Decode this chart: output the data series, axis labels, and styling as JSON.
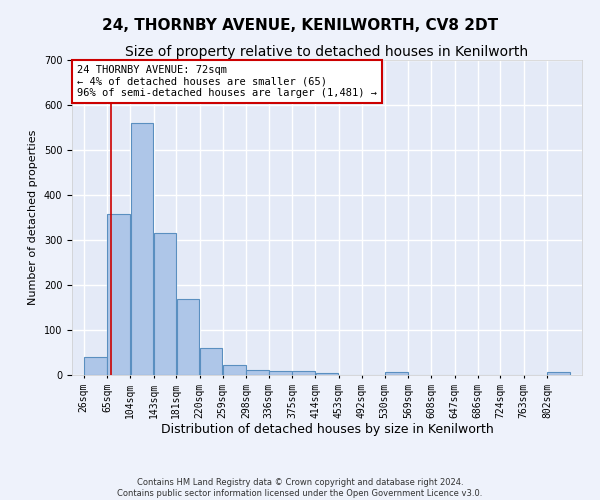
{
  "title": "24, THORNBY AVENUE, KENILWORTH, CV8 2DT",
  "subtitle": "Size of property relative to detached houses in Kenilworth",
  "xlabel": "Distribution of detached houses by size in Kenilworth",
  "ylabel": "Number of detached properties",
  "footer_line1": "Contains HM Land Registry data © Crown copyright and database right 2024.",
  "footer_line2": "Contains public sector information licensed under the Open Government Licence v3.0.",
  "bin_labels": [
    "26sqm",
    "65sqm",
    "104sqm",
    "143sqm",
    "181sqm",
    "220sqm",
    "259sqm",
    "298sqm",
    "336sqm",
    "375sqm",
    "414sqm",
    "453sqm",
    "492sqm",
    "530sqm",
    "569sqm",
    "608sqm",
    "647sqm",
    "686sqm",
    "724sqm",
    "763sqm",
    "802sqm"
  ],
  "bin_edges": [
    26,
    65,
    104,
    143,
    181,
    220,
    259,
    298,
    336,
    375,
    414,
    453,
    492,
    530,
    569,
    608,
    647,
    686,
    724,
    763,
    802
  ],
  "bar_heights": [
    40,
    358,
    560,
    315,
    168,
    60,
    22,
    12,
    10,
    8,
    5,
    0,
    0,
    7,
    0,
    0,
    0,
    0,
    0,
    0,
    7
  ],
  "bar_color": "#aec6e8",
  "bar_edge_color": "#5a8fc0",
  "bar_edge_width": 0.8,
  "red_line_x": 72,
  "red_line_color": "#cc0000",
  "annotation_line1": "24 THORNBY AVENUE: 72sqm",
  "annotation_line2": "← 4% of detached houses are smaller (65)",
  "annotation_line3": "96% of semi-detached houses are larger (1,481) →",
  "annotation_box_color": "#ffffff",
  "annotation_border_color": "#cc0000",
  "ylim": [
    0,
    700
  ],
  "yticks": [
    0,
    100,
    200,
    300,
    400,
    500,
    600,
    700
  ],
  "background_color": "#eef2fb",
  "axes_background_color": "#e4eaf7",
  "grid_color": "#ffffff",
  "title_fontsize": 11,
  "subtitle_fontsize": 10,
  "ylabel_fontsize": 8,
  "xlabel_fontsize": 9,
  "tick_fontsize": 7
}
